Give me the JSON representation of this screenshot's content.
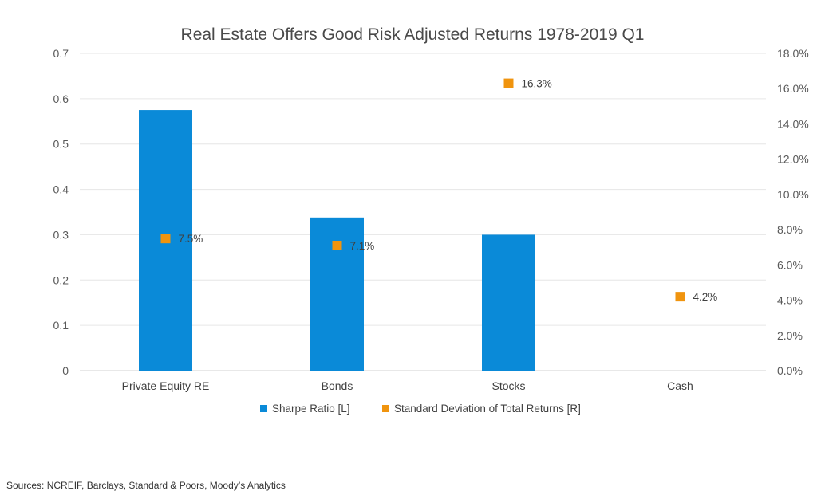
{
  "chart_data": {
    "type": "bar",
    "title": "Real Estate Offers Good Risk Adjusted Returns 1978-2019 Q1",
    "categories": [
      "Private Equity RE",
      "Bonds",
      "Stocks",
      "Cash"
    ],
    "series": [
      {
        "name": "Sharpe Ratio [L]",
        "type": "bar",
        "axis": "left",
        "color": "#0a8ad8",
        "values": [
          0.575,
          0.338,
          0.3,
          0
        ]
      },
      {
        "name": "Standard Deviation of Total Returns [R]",
        "type": "scatter",
        "axis": "right",
        "color": "#f0940e",
        "values": [
          7.5,
          7.1,
          16.3,
          4.2
        ],
        "labels": [
          "7.5%",
          "7.1%",
          "16.3%",
          "4.2%"
        ]
      }
    ],
    "y_left": {
      "min": 0,
      "max": 0.7,
      "ticks": [
        "0",
        "0.1",
        "0.2",
        "0.3",
        "0.4",
        "0.5",
        "0.6",
        "0.7"
      ]
    },
    "y_right": {
      "min": 0,
      "max": 18,
      "ticks": [
        "0.0%",
        "2.0%",
        "4.0%",
        "6.0%",
        "8.0%",
        "10.0%",
        "12.0%",
        "14.0%",
        "16.0%",
        "18.0%"
      ]
    },
    "grid": true,
    "legend": "bottom"
  },
  "source_text": "Sources:  NCREIF, Barclays, Standard & Poors, Moody’s Analytics"
}
